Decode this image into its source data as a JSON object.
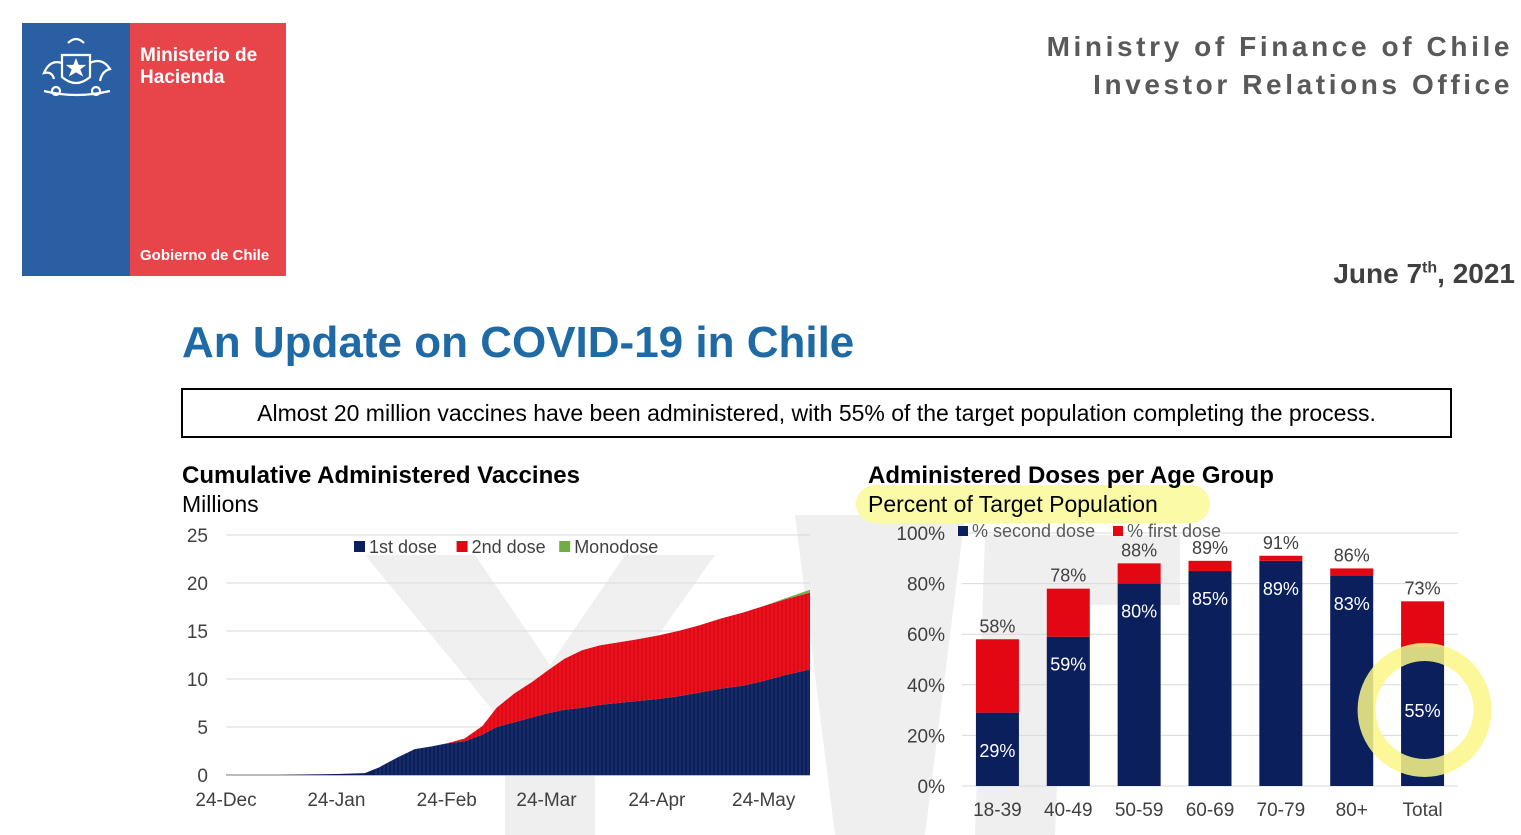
{
  "logo": {
    "ministry": "Ministerio de Hacienda",
    "government": "Gobierno de Chile",
    "icon": "chile-coat-of-arms-icon",
    "colors": {
      "blue": "#2a5fa3",
      "red": "#e8454a"
    }
  },
  "header": {
    "line1": "Ministry of Finance of Chile",
    "line2": "Investor Relations Office",
    "date_main": "June 7",
    "date_sup": "th",
    "date_year": ", 2021"
  },
  "title": "An Update on COVID-19 in Chile",
  "banner": "Almost 20 million vaccines have been administered, with 55% of the target population completing the process.",
  "colors": {
    "first_dose": "#e30613",
    "second_dose": "#0a1f5c",
    "monodose": "#70ad47",
    "title_blue": "#1f6aa5",
    "highlight": "#fbfaa6",
    "circle": "#fbf787"
  },
  "chart_data": [
    {
      "type": "area",
      "stacked": true,
      "title": "Cumulative Administered Vaccines",
      "subtitle": "Millions",
      "x_tick_labels": [
        "24-Dec",
        "24-Jan",
        "24-Feb",
        "24-Mar",
        "24-Apr",
        "24-May"
      ],
      "ylim": [
        0,
        25
      ],
      "y_ticks": [
        "0",
        "5",
        "10",
        "15",
        "20",
        "25"
      ],
      "grid": true,
      "legend_position": "top",
      "x": [
        "2020-12-24",
        "2021-01-08",
        "2021-01-24",
        "2021-02-01",
        "2021-02-05",
        "2021-02-10",
        "2021-02-15",
        "2021-02-20",
        "2021-02-24",
        "2021-03-01",
        "2021-03-06",
        "2021-03-10",
        "2021-03-15",
        "2021-03-20",
        "2021-03-24",
        "2021-03-29",
        "2021-04-03",
        "2021-04-08",
        "2021-04-13",
        "2021-04-18",
        "2021-04-24",
        "2021-04-30",
        "2021-05-06",
        "2021-05-12",
        "2021-05-18",
        "2021-05-24",
        "2021-05-30",
        "2021-06-06"
      ],
      "series": [
        {
          "name": "1st dose",
          "values": [
            0,
            0,
            0.1,
            0.2,
            0.8,
            1.8,
            2.7,
            3.0,
            3.3,
            3.5,
            4.2,
            5.0,
            5.5,
            6.0,
            6.4,
            6.8,
            7.0,
            7.3,
            7.5,
            7.7,
            7.9,
            8.2,
            8.6,
            9.0,
            9.3,
            9.8,
            10.4,
            11.0
          ]
        },
        {
          "name": "2nd dose",
          "values": [
            0,
            0,
            0,
            0,
            0,
            0,
            0,
            0,
            0,
            0.3,
            0.9,
            2.0,
            3.0,
            3.7,
            4.4,
            5.3,
            6.0,
            6.2,
            6.3,
            6.4,
            6.6,
            6.8,
            7.0,
            7.3,
            7.6,
            7.8,
            7.9,
            8.0
          ]
        },
        {
          "name": "Monodose",
          "values": [
            0,
            0,
            0,
            0,
            0,
            0,
            0,
            0,
            0,
            0,
            0,
            0,
            0,
            0,
            0,
            0,
            0,
            0,
            0,
            0,
            0,
            0,
            0,
            0,
            0,
            0,
            0.1,
            0.3
          ]
        }
      ]
    },
    {
      "type": "bar",
      "stacked": true,
      "title": "Administered Doses per Age Group",
      "subtitle": "Percent of Target Population",
      "categories": [
        "18-39",
        "40-49",
        "50-59",
        "60-69",
        "70-79",
        "80+",
        "Total"
      ],
      "ylim": [
        0,
        100
      ],
      "y_ticks": [
        "0%",
        "20%",
        "40%",
        "60%",
        "80%",
        "100%"
      ],
      "grid": true,
      "legend_position": "top",
      "series": [
        {
          "name": "% second dose",
          "values": [
            29,
            59,
            80,
            85,
            89,
            83,
            55
          ]
        },
        {
          "name": "% first dose",
          "values": [
            29,
            19,
            8,
            4,
            2,
            3,
            18
          ]
        }
      ],
      "inner_labels": [
        "29%",
        "59%",
        "80%",
        "85%",
        "89%",
        "83%",
        "55%"
      ],
      "top_labels": [
        "58%",
        "78%",
        "88%",
        "89%",
        "91%",
        "86%",
        "73%"
      ],
      "annotation": "Total second dose circled"
    }
  ]
}
